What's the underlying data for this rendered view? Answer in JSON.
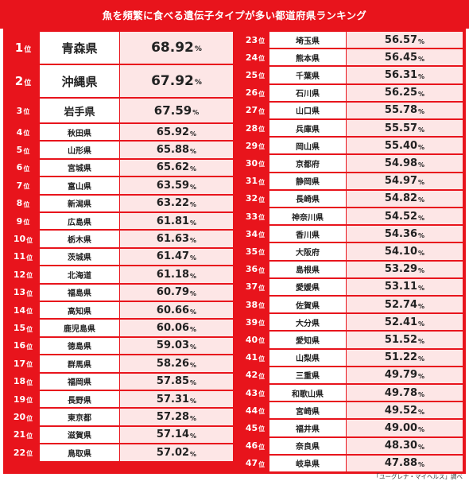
{
  "title": "魚を頻繁に食べる遺伝子タイプが多い都道府県ランキング",
  "rank_suffix": "位",
  "percent_unit": "%",
  "source": "「ユーグレナ・マイヘルス」調べ",
  "left_column": [
    {
      "rank": "1",
      "prefecture": "青森県",
      "value": "68.92"
    },
    {
      "rank": "2",
      "prefecture": "沖縄県",
      "value": "67.92"
    },
    {
      "rank": "3",
      "prefecture": "岩手県",
      "value": "67.59"
    },
    {
      "rank": "4",
      "prefecture": "秋田県",
      "value": "65.92"
    },
    {
      "rank": "5",
      "prefecture": "山形県",
      "value": "65.88"
    },
    {
      "rank": "6",
      "prefecture": "宮城県",
      "value": "65.62"
    },
    {
      "rank": "7",
      "prefecture": "富山県",
      "value": "63.59"
    },
    {
      "rank": "8",
      "prefecture": "新潟県",
      "value": "63.22"
    },
    {
      "rank": "9",
      "prefecture": "広島県",
      "value": "61.81"
    },
    {
      "rank": "10",
      "prefecture": "栃木県",
      "value": "61.63"
    },
    {
      "rank": "11",
      "prefecture": "茨城県",
      "value": "61.47"
    },
    {
      "rank": "12",
      "prefecture": "北海道",
      "value": "61.18"
    },
    {
      "rank": "13",
      "prefecture": "福島県",
      "value": "60.79"
    },
    {
      "rank": "14",
      "prefecture": "高知県",
      "value": "60.66"
    },
    {
      "rank": "15",
      "prefecture": "鹿児島県",
      "value": "60.06"
    },
    {
      "rank": "16",
      "prefecture": "徳島県",
      "value": "59.03"
    },
    {
      "rank": "17",
      "prefecture": "群馬県",
      "value": "58.26"
    },
    {
      "rank": "18",
      "prefecture": "福岡県",
      "value": "57.85"
    },
    {
      "rank": "19",
      "prefecture": "長野県",
      "value": "57.31"
    },
    {
      "rank": "20",
      "prefecture": "東京都",
      "value": "57.28"
    },
    {
      "rank": "21",
      "prefecture": "滋賀県",
      "value": "57.14"
    },
    {
      "rank": "22",
      "prefecture": "鳥取県",
      "value": "57.02"
    }
  ],
  "right_column": [
    {
      "rank": "23",
      "prefecture": "埼玉県",
      "value": "56.57"
    },
    {
      "rank": "24",
      "prefecture": "熊本県",
      "value": "56.45"
    },
    {
      "rank": "25",
      "prefecture": "千葉県",
      "value": "56.31"
    },
    {
      "rank": "26",
      "prefecture": "石川県",
      "value": "56.25"
    },
    {
      "rank": "27",
      "prefecture": "山口県",
      "value": "55.78"
    },
    {
      "rank": "28",
      "prefecture": "兵庫県",
      "value": "55.57"
    },
    {
      "rank": "29",
      "prefecture": "岡山県",
      "value": "55.40"
    },
    {
      "rank": "30",
      "prefecture": "京都府",
      "value": "54.98"
    },
    {
      "rank": "31",
      "prefecture": "静岡県",
      "value": "54.97"
    },
    {
      "rank": "32",
      "prefecture": "長崎県",
      "value": "54.82"
    },
    {
      "rank": "33",
      "prefecture": "神奈川県",
      "value": "54.52"
    },
    {
      "rank": "34",
      "prefecture": "香川県",
      "value": "54.36"
    },
    {
      "rank": "35",
      "prefecture": "大阪府",
      "value": "54.10"
    },
    {
      "rank": "36",
      "prefecture": "島根県",
      "value": "53.29"
    },
    {
      "rank": "37",
      "prefecture": "愛媛県",
      "value": "53.11"
    },
    {
      "rank": "38",
      "prefecture": "佐賀県",
      "value": "52.74"
    },
    {
      "rank": "39",
      "prefecture": "大分県",
      "value": "52.41"
    },
    {
      "rank": "40",
      "prefecture": "愛知県",
      "value": "51.52"
    },
    {
      "rank": "41",
      "prefecture": "山梨県",
      "value": "51.22"
    },
    {
      "rank": "42",
      "prefecture": "三重県",
      "value": "49.79"
    },
    {
      "rank": "43",
      "prefecture": "和歌山県",
      "value": "49.78"
    },
    {
      "rank": "44",
      "prefecture": "宮崎県",
      "value": "49.52"
    },
    {
      "rank": "45",
      "prefecture": "福井県",
      "value": "49.00"
    },
    {
      "rank": "46",
      "prefecture": "奈良県",
      "value": "48.30"
    },
    {
      "rank": "47",
      "prefecture": "岐阜県",
      "value": "47.88"
    }
  ],
  "colors": {
    "accent": "#e8141c",
    "value_bg": "#fde6e6",
    "name_bg": "#ffffff"
  }
}
